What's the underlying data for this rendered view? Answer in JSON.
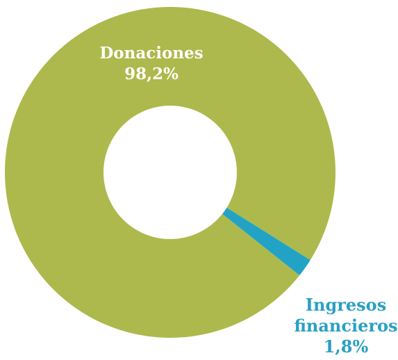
{
  "chart_data": {
    "type": "donut",
    "categories": [
      "Donaciones",
      "Ingresos financieros"
    ],
    "values": [
      98.2,
      1.8
    ],
    "value_labels": [
      "98,2%",
      "1,8%"
    ],
    "colors": [
      "#adb94c",
      "#22a3c6"
    ]
  }
}
